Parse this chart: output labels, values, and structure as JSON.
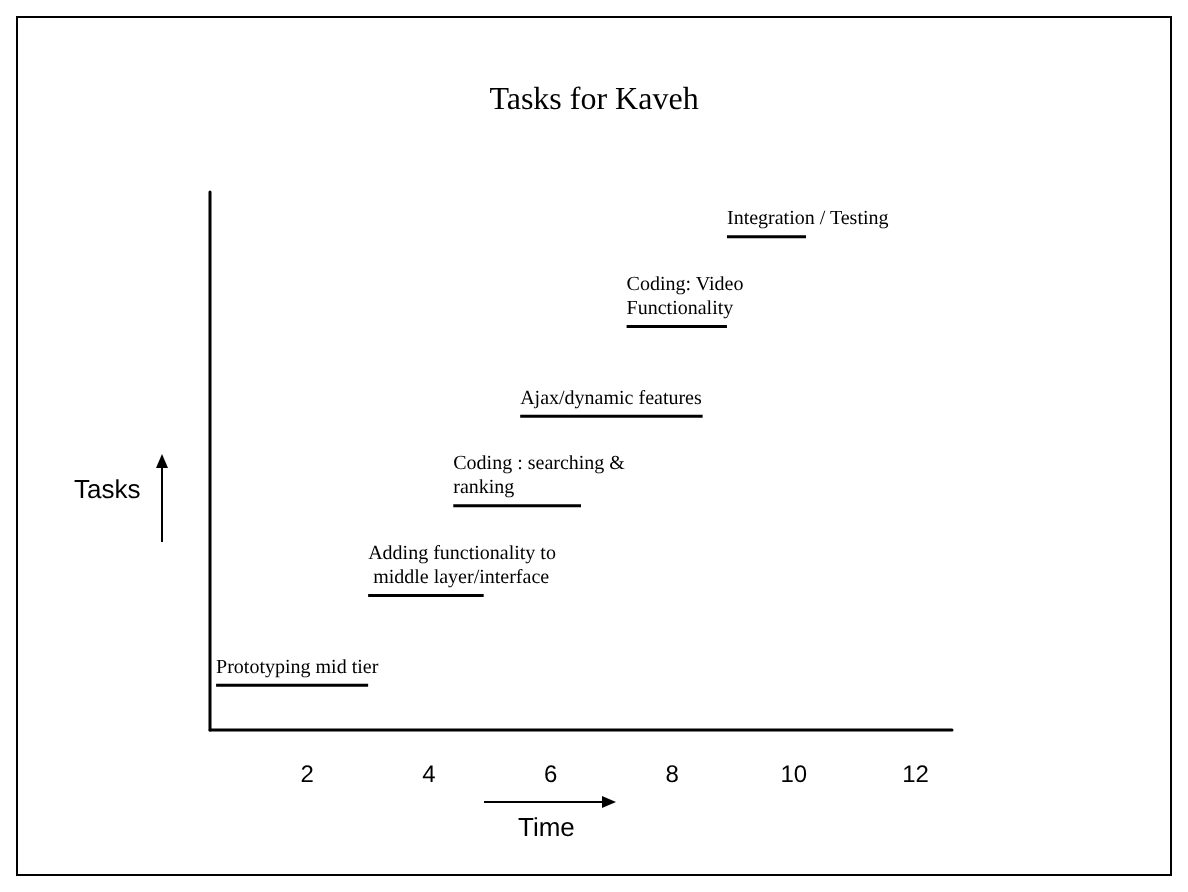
{
  "chart_data": {
    "type": "bar",
    "orientation": "horizontal",
    "title": "Tasks for Kaveh",
    "xlabel": "Time",
    "ylabel": "Tasks",
    "categories": [
      "Integration / Testing",
      "Coding: Video Functionality",
      "Ajax/dynamic features",
      "Coding : searching & ranking",
      "Adding functionality to middle layer/interface",
      "Prototyping mid tier"
    ],
    "base": [
      8.9,
      7.25,
      5.5,
      4.4,
      3.0,
      0.5
    ],
    "values": [
      1.3,
      1.65,
      3.0,
      2.1,
      1.9,
      2.5
    ],
    "color": "#000000",
    "xlim": [
      0.4,
      12.6
    ],
    "xticks": [
      2,
      4,
      6,
      8,
      10,
      12
    ],
    "tick_labels": "x"
  }
}
